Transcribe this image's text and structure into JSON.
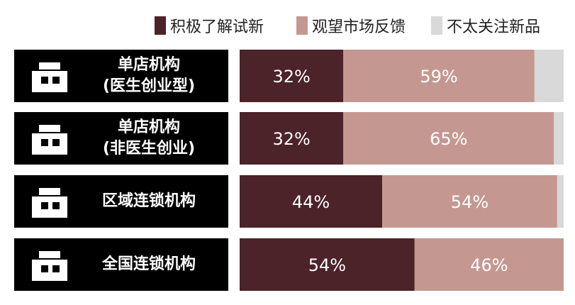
{
  "chart_data": {
    "type": "stacked-bar-horizontal",
    "categories": [
      "单店机构\n(医生创业型)",
      "单店机构\n(非医生创业)",
      "区域连锁机构",
      "全国连锁机构"
    ],
    "series": [
      {
        "name": "积极了解试新",
        "color": "#4b2328",
        "values": [
          32,
          32,
          44,
          54
        ],
        "value_labels": [
          "32%",
          "32%",
          "44%",
          "54%"
        ]
      },
      {
        "name": "观望市场反馈",
        "color": "#c49890",
        "values": [
          59,
          65,
          54,
          46
        ],
        "value_labels": [
          "59%",
          "65%",
          "54%",
          "46%"
        ]
      },
      {
        "name": "不太关注新品",
        "color": "#d9d9d9",
        "values": [
          9,
          3,
          2,
          0
        ]
      }
    ],
    "xlim": [
      0,
      100
    ]
  }
}
